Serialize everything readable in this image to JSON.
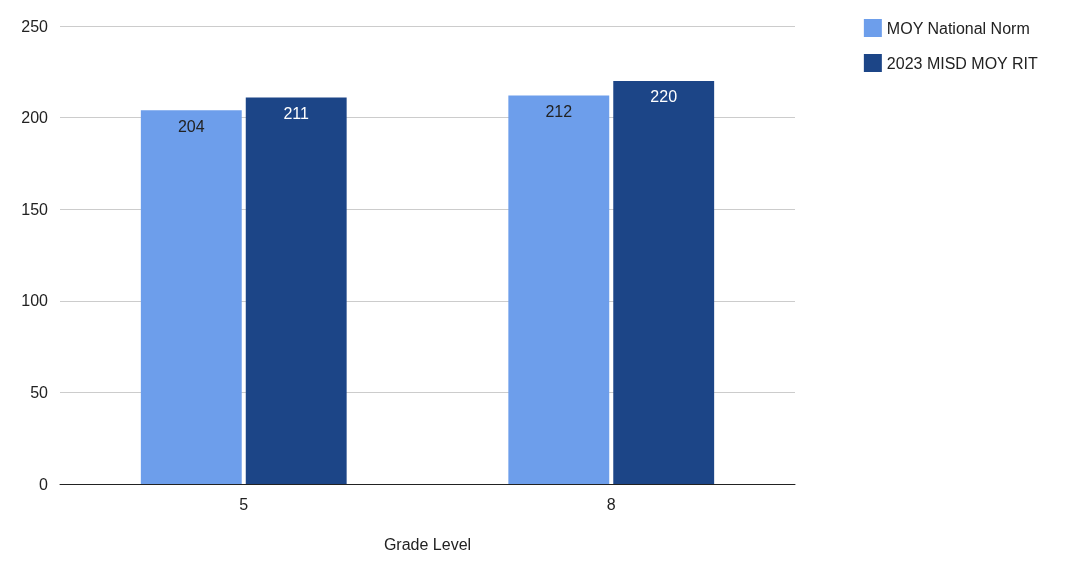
{
  "chart_data": {
    "type": "bar",
    "xlabel": "Grade Level",
    "categories": [
      "5",
      "8"
    ],
    "series": [
      {
        "name": "MOY National Norm",
        "color": "#6d9eeb",
        "values": [
          204,
          212
        ]
      },
      {
        "name": "2023 MISD MOY RIT",
        "color": "#1c4587",
        "values": [
          211,
          220
        ]
      }
    ],
    "ylim": [
      0,
      250
    ],
    "yticks": [
      0,
      50,
      100,
      150,
      200,
      250
    ],
    "grid": "y",
    "legend": "top right",
    "data_labels": true
  }
}
